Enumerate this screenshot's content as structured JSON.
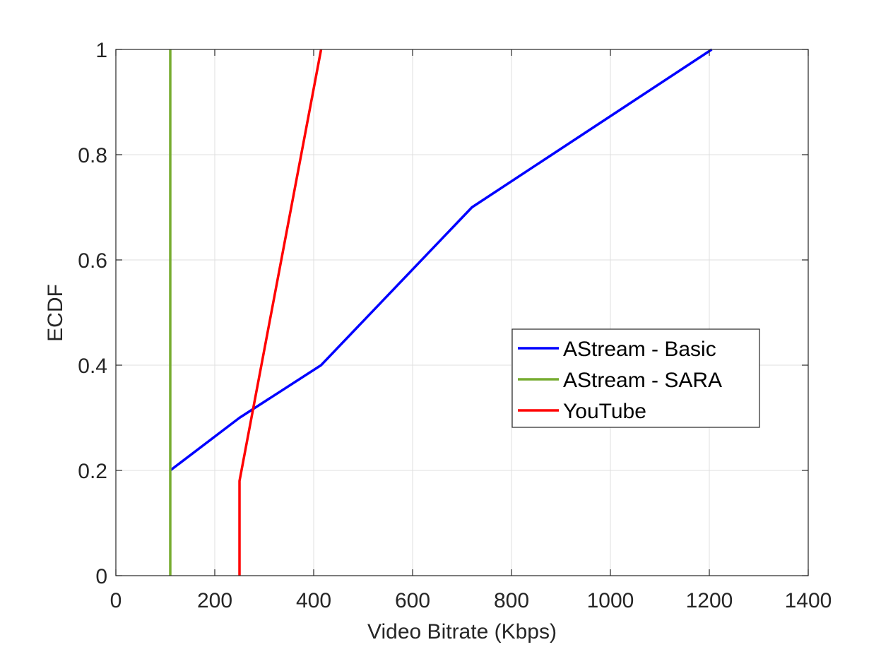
{
  "chart_data": {
    "type": "line",
    "title": "",
    "xlabel": "Video Bitrate (Kbps)",
    "ylabel": "ECDF",
    "xlim": [
      0,
      1400
    ],
    "ylim": [
      0,
      1
    ],
    "xticks": [
      0,
      200,
      400,
      600,
      800,
      1000,
      1200,
      1400
    ],
    "xtick_labels": [
      "0",
      "200",
      "400",
      "600",
      "800",
      "1000",
      "1200",
      "1400"
    ],
    "yticks": [
      0,
      0.2,
      0.4,
      0.6,
      0.8,
      1
    ],
    "ytick_labels": [
      "0",
      "0.2",
      "0.4",
      "0.6",
      "0.8",
      "1"
    ],
    "grid": true,
    "legend_position": "center-right",
    "series": [
      {
        "name": "AStream - Basic",
        "color": "#0000ff",
        "points": [
          [
            110,
            0.2
          ],
          [
            250,
            0.3
          ],
          [
            415,
            0.4
          ],
          [
            720,
            0.7
          ],
          [
            1205,
            1.0
          ]
        ]
      },
      {
        "name": "AStream - SARA",
        "color": "#77ac30",
        "points": [
          [
            110,
            0
          ],
          [
            110,
            1
          ]
        ]
      },
      {
        "name": "YouTube",
        "color": "#ff0000",
        "points": [
          [
            250,
            0
          ],
          [
            250,
            0.18
          ],
          [
            415,
            1.0
          ]
        ]
      }
    ]
  }
}
